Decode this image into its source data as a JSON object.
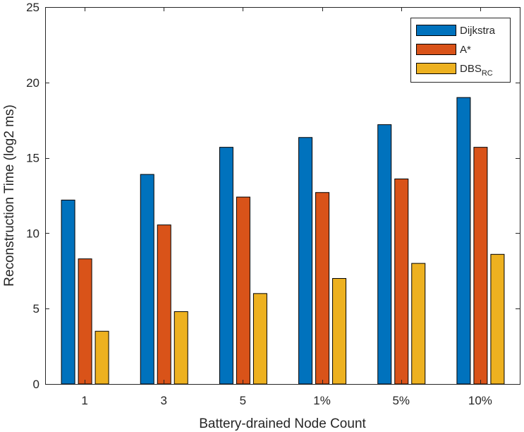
{
  "chart_data": {
    "type": "bar",
    "title": "",
    "xlabel": "Battery-drained Node Count",
    "ylabel": "Reconstruction Time (log2 ms)",
    "categories": [
      "1",
      "3",
      "5",
      "1%",
      "5%",
      "10%"
    ],
    "ylim": [
      0,
      25
    ],
    "yticks": [
      0,
      5,
      10,
      15,
      20,
      25
    ],
    "grid": false,
    "legend_position": "top-right",
    "series": [
      {
        "name": "Dijkstra",
        "color": "#0072BD",
        "values": [
          12.2,
          13.9,
          15.7,
          16.35,
          17.2,
          19.0
        ]
      },
      {
        "name": "A*",
        "color": "#D95319",
        "values": [
          8.3,
          10.55,
          12.4,
          12.7,
          13.6,
          15.7
        ]
      },
      {
        "name": "DBS",
        "name_subscript": "RC",
        "color": "#EDB120",
        "values": [
          3.5,
          4.8,
          6.0,
          7.0,
          8.0,
          8.6
        ]
      }
    ]
  }
}
